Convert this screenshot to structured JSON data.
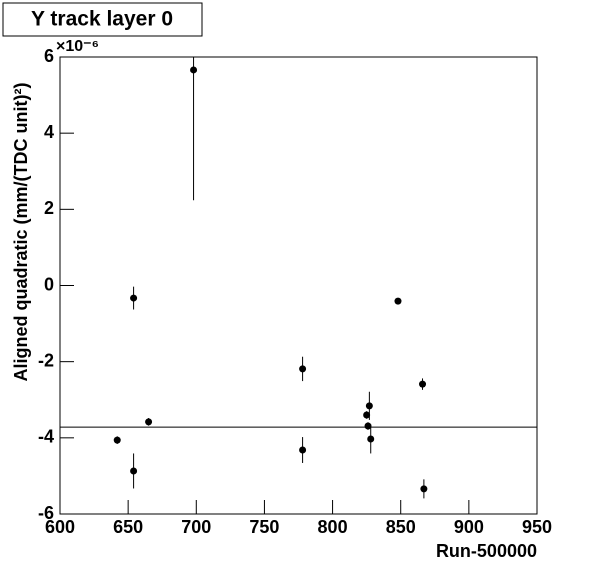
{
  "chart_data": {
    "type": "scatter",
    "title": "Y track layer 0",
    "x_label": "Run-500000",
    "y_label": "Aligned quadratic (mm/(TDC unit)²)",
    "y_multiplier": "×10⁻⁶",
    "series": [
      {
        "color": "#000000",
        "x": [
          642,
          654,
          654,
          665,
          698,
          778,
          778,
          825,
          827,
          826,
          828,
          848,
          866,
          867
        ],
        "values": [
          -4.06,
          -0.33,
          -4.87,
          -3.58,
          5.66,
          -2.19,
          -4.32,
          -3.4,
          -3.16,
          -3.69,
          -4.03,
          -0.41,
          -2.59,
          -5.34
        ],
        "errors": [
          0.1,
          0.3,
          0.46,
          0.1,
          3.42,
          0.32,
          0.34,
          0.1,
          0.37,
          0.1,
          0.38,
          0.03,
          0.15,
          0.25
        ]
      }
    ],
    "fit_line": -3.72,
    "xlim": [
      600,
      950
    ],
    "xticks": [
      600,
      650,
      700,
      750,
      800,
      850,
      900,
      950
    ],
    "ylim": [
      -6,
      6
    ],
    "yticks": [
      -6,
      -4,
      -2,
      0,
      2,
      4,
      6
    ]
  }
}
